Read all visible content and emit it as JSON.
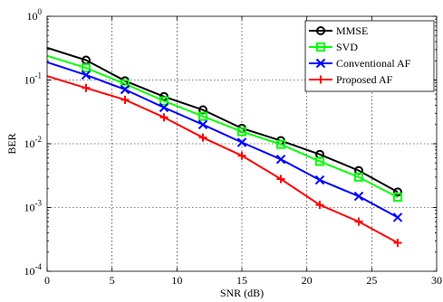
{
  "chart_data": {
    "type": "line",
    "xlabel": "SNR (dB)",
    "ylabel": "BER",
    "x_ticks": [
      0,
      5,
      10,
      15,
      20,
      25,
      30
    ],
    "x_tick_labels": [
      "0",
      "5",
      "10",
      "15",
      "20",
      "25",
      "30"
    ],
    "y_ticks": [
      0.0001,
      0.001,
      0.01,
      0.1,
      1
    ],
    "y_tick_labels": [
      {
        "base": "10",
        "exp": "-4"
      },
      {
        "base": "10",
        "exp": "-3"
      },
      {
        "base": "10",
        "exp": "-2"
      },
      {
        "base": "10",
        "exp": "-1"
      },
      {
        "base": "10",
        "exp": "0"
      }
    ],
    "xlim": [
      0,
      30
    ],
    "ylim": [
      0.0001,
      1
    ],
    "y_scale": "log",
    "grid": true,
    "legend_position": "top-right",
    "series": [
      {
        "name": "MMSE",
        "color": "#000000",
        "marker": "circle",
        "x": [
          0,
          3,
          6,
          9,
          12,
          15,
          18,
          21,
          24,
          27
        ],
        "y": [
          0.32,
          0.205,
          0.097,
          0.055,
          0.034,
          0.0175,
          0.0112,
          0.0068,
          0.0038,
          0.00175
        ],
        "marker_x": [
          3,
          6,
          9,
          12,
          15,
          18,
          21,
          24,
          27
        ]
      },
      {
        "name": "SVD",
        "color": "#00ff00",
        "marker": "square",
        "x": [
          0,
          3,
          6,
          9,
          12,
          15,
          18,
          21,
          24,
          27
        ],
        "y": [
          0.24,
          0.155,
          0.087,
          0.047,
          0.027,
          0.0155,
          0.0098,
          0.0053,
          0.003,
          0.00145
        ],
        "marker_x": [
          3,
          6,
          9,
          12,
          15,
          18,
          21,
          24,
          27
        ]
      },
      {
        "name": "Conventional AF",
        "color": "#0000ff",
        "marker": "x",
        "x": [
          0,
          3,
          6,
          9,
          12,
          15,
          18,
          21,
          24,
          27
        ],
        "y": [
          0.19,
          0.12,
          0.071,
          0.037,
          0.02,
          0.0105,
          0.0057,
          0.0027,
          0.0015,
          0.0007
        ],
        "marker_x": [
          3,
          6,
          9,
          12,
          15,
          18,
          21,
          24,
          27
        ]
      },
      {
        "name": "Proposed AF",
        "color": "#ff0000",
        "marker": "plus",
        "x": [
          0,
          3,
          6,
          9,
          12,
          15,
          18,
          21,
          24,
          27
        ],
        "y": [
          0.115,
          0.075,
          0.049,
          0.026,
          0.0125,
          0.0065,
          0.0028,
          0.0011,
          0.0006,
          0.00028
        ],
        "marker_x": [
          3,
          6,
          9,
          12,
          15,
          18,
          21,
          24,
          27
        ]
      }
    ]
  }
}
